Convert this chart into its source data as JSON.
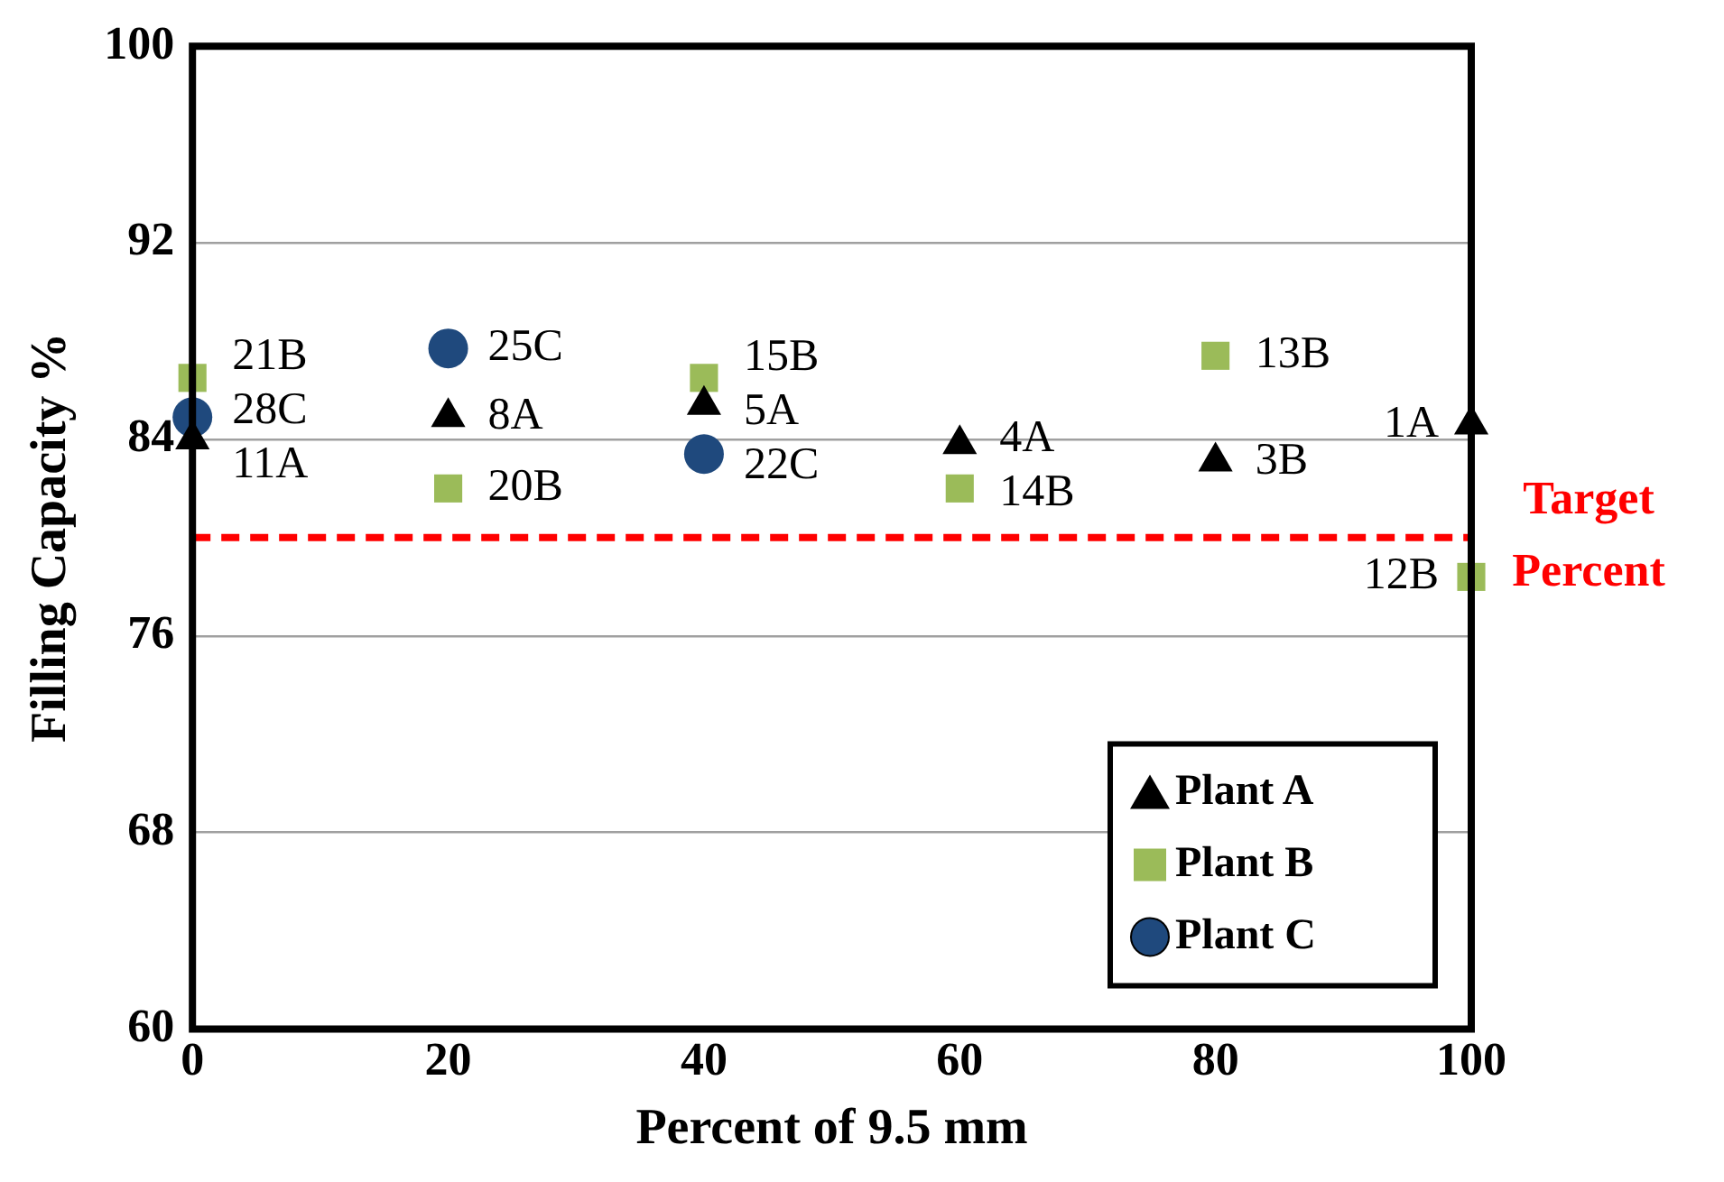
{
  "chart_data": {
    "type": "scatter",
    "xlabel": "Percent of 9.5 mm",
    "ylabel": "Filling Capacity %",
    "xlim": [
      0,
      100
    ],
    "xticks": [
      0,
      20,
      40,
      60,
      80,
      100
    ],
    "ylim": [
      60,
      100
    ],
    "yticks": [
      60,
      68,
      76,
      84,
      92,
      100
    ],
    "grid": "y",
    "legend": "bottom right",
    "series": [
      {
        "name": "Plant A",
        "color": "#000000",
        "marker": "triangle",
        "x": [
          0,
          20,
          40,
          60,
          80,
          100
        ],
        "values": [
          84,
          84.9,
          85.4,
          83.8,
          83.1,
          84.6
        ]
      },
      {
        "name": "Plant B",
        "color": "#9bbb59",
        "marker": "square",
        "x": [
          0,
          20,
          40,
          60,
          80,
          100
        ],
        "values": [
          86.5,
          82,
          86.5,
          82,
          87.4,
          78.4
        ]
      },
      {
        "name": "Plant C",
        "color": "#1f497d",
        "marker": "circle",
        "x": [
          0,
          20,
          40
        ],
        "values": [
          84.9,
          87.7,
          83.4
        ]
      }
    ],
    "ref_lines": [
      {
        "axis": "y",
        "value": 80,
        "label": "Target Percent",
        "color": "#ff0000",
        "line_style": "dashed"
      }
    ],
    "annotations": [
      {
        "text": "11A",
        "x": 0,
        "y": 84
      },
      {
        "text": "8A",
        "x": 20,
        "y": 84.9
      },
      {
        "text": "5A",
        "x": 40,
        "y": 85.4
      },
      {
        "text": "4A",
        "x": 60,
        "y": 83.8
      },
      {
        "text": "3B",
        "x": 80,
        "y": 83.1
      },
      {
        "text": "1A",
        "x": 100,
        "y": 84.6
      },
      {
        "text": "21B",
        "x": 0,
        "y": 86.5
      },
      {
        "text": "20B",
        "x": 20,
        "y": 82
      },
      {
        "text": "15B",
        "x": 40,
        "y": 86.5
      },
      {
        "text": "14B",
        "x": 60,
        "y": 82
      },
      {
        "text": "13B",
        "x": 80,
        "y": 87.4
      },
      {
        "text": "12B",
        "x": 100,
        "y": 78.4
      },
      {
        "text": "28C",
        "x": 0,
        "y": 84.9
      },
      {
        "text": "25C",
        "x": 20,
        "y": 87.7
      },
      {
        "text": "22C",
        "x": 40,
        "y": 83.4
      }
    ]
  }
}
